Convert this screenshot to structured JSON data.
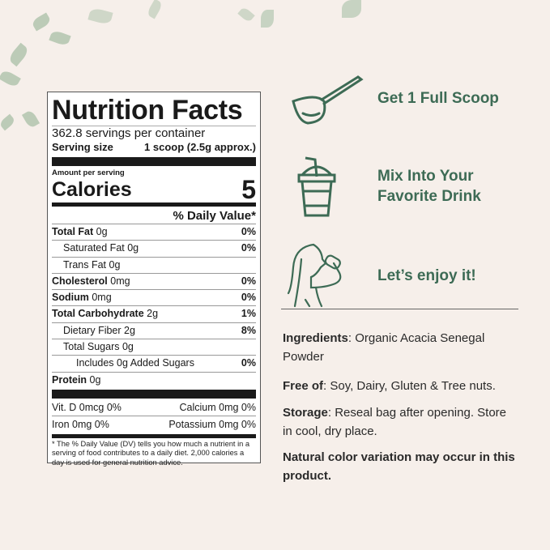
{
  "colors": {
    "background": "#f6efea",
    "accent_green": "#3d6b55"
  },
  "label": {
    "title": "Nutrition Facts",
    "servings": "362.8 servings per container",
    "serving_size_label": "Serving size",
    "serving_size_value": "1 scoop (2.5g approx.)",
    "amount_per_serving": "Amount per serving",
    "calories_label": "Calories",
    "calories_value": "5",
    "dv_header": "% Daily Value*",
    "rows": [
      {
        "name": "Total Fat",
        "amount": "0g",
        "dv": "0%"
      },
      {
        "name": "Saturated Fat 0g",
        "amount": "",
        "dv": "0%"
      },
      {
        "name": "Trans Fat 0g",
        "amount": "",
        "dv": ""
      },
      {
        "name": "Cholesterol",
        "amount": "0mg",
        "dv": "0%"
      },
      {
        "name": "Sodium",
        "amount": "0mg",
        "dv": "0%"
      },
      {
        "name": "Total Carbohydrate",
        "amount": "2g",
        "dv": "1%"
      },
      {
        "name": "Dietary Fiber 2g",
        "amount": "",
        "dv": "8%"
      },
      {
        "name": "Total Sugars 0g",
        "amount": "",
        "dv": ""
      },
      {
        "name": "Includes 0g Added Sugars",
        "amount": "",
        "dv": "0%"
      },
      {
        "name": "Protein",
        "amount": "0g",
        "dv": ""
      }
    ],
    "vitamins": [
      [
        "Vit. D 0mcg 0%",
        "Calcium 0mg 0%"
      ],
      [
        "Iron 0mg 0%",
        "Potassium 0mg 0%"
      ]
    ],
    "footnote": "* The % Daily Value (DV) tells you how much a nutrient in a serving of food contributes to a daily diet. 2,000 calories a day is used for general nutrition advice."
  },
  "steps": [
    {
      "icon": "scoop-icon",
      "text": "Get 1 Full Scoop"
    },
    {
      "icon": "drink-cup-icon",
      "text_line1": "Mix Into Your",
      "text_line2": "Favorite Drink"
    },
    {
      "icon": "woman-drinking-icon",
      "text": "Let’s enjoy it!"
    }
  ],
  "info": {
    "ingredients_label": "Ingredients",
    "ingredients_text": ": Organic Acacia Senegal Powder",
    "free_label": "Free of",
    "free_text": ": Soy, Dairy, Gluten & Tree nuts.",
    "storage_label": "Storage",
    "storage_text": ": Reseal bag after opening. Store in cool, dry place.",
    "note": "Natural color variation may occur in this product."
  }
}
